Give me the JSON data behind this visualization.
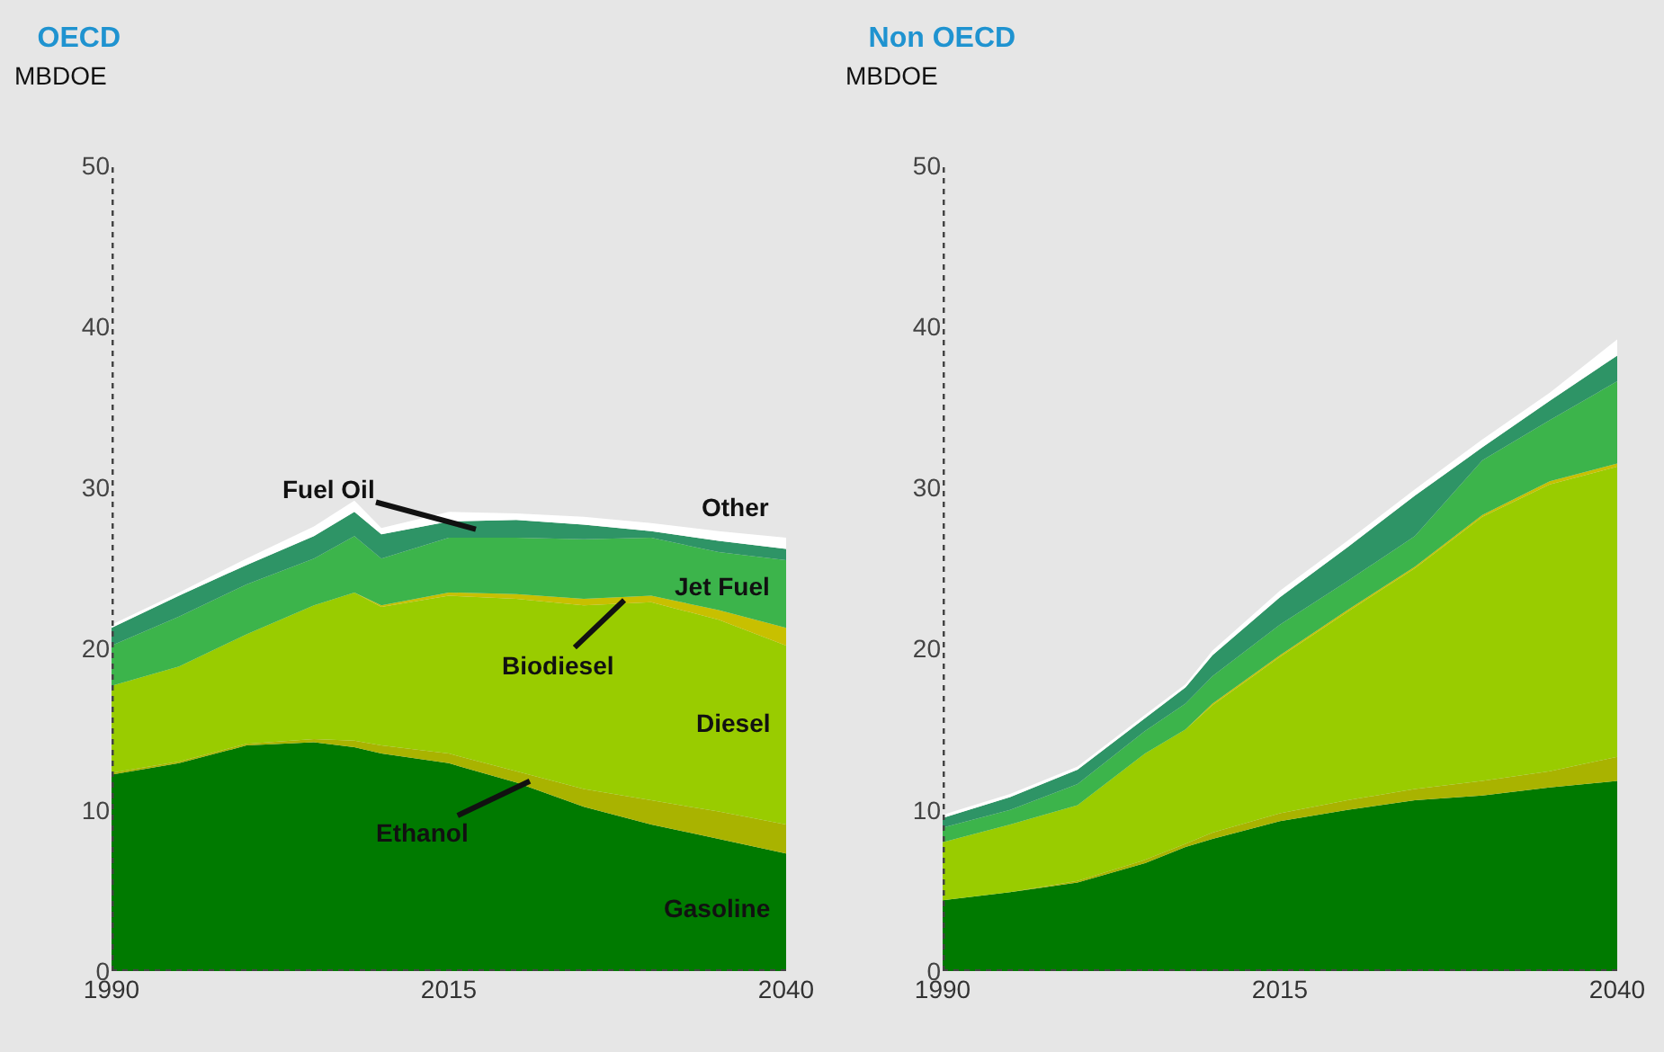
{
  "chart_data": [
    {
      "type": "area",
      "stacked": true,
      "title": "OECD",
      "ylabel": "MBDOE",
      "x": [
        1990,
        1995,
        2000,
        2005,
        2008,
        2010,
        2015,
        2020,
        2025,
        2030,
        2035,
        2040
      ],
      "xlim": [
        1990,
        2040
      ],
      "xticks": [
        1990,
        2015,
        2040
      ],
      "ylim": [
        0,
        50
      ],
      "yticks": [
        0,
        10,
        20,
        30,
        40,
        50
      ],
      "series": [
        {
          "name": "Gasoline",
          "color": "#007a00",
          "values": [
            12.2,
            12.9,
            14.0,
            14.2,
            13.9,
            13.5,
            12.9,
            11.7,
            10.2,
            9.1,
            8.2,
            7.3
          ]
        },
        {
          "name": "Ethanol",
          "color": "#a9b300",
          "values": [
            0.1,
            0.1,
            0.1,
            0.2,
            0.4,
            0.5,
            0.6,
            0.7,
            1.1,
            1.5,
            1.7,
            1.8
          ]
        },
        {
          "name": "Diesel",
          "color": "#99cc00",
          "values": [
            5.4,
            5.9,
            6.8,
            8.3,
            9.2,
            8.6,
            9.8,
            10.7,
            11.4,
            12.3,
            11.9,
            11.1
          ]
        },
        {
          "name": "Biodiesel",
          "color": "#c8c000",
          "values": [
            0,
            0,
            0,
            0,
            0,
            0.1,
            0.2,
            0.3,
            0.4,
            0.4,
            0.6,
            1.1
          ]
        },
        {
          "name": "Jet Fuel",
          "color": "#3cb44b",
          "values": [
            2.5,
            3.1,
            3.1,
            2.9,
            3.5,
            2.9,
            3.4,
            3.5,
            3.7,
            3.6,
            3.6,
            4.2
          ]
        },
        {
          "name": "Fuel Oil",
          "color": "#2e9466",
          "values": [
            1.1,
            1.3,
            1.2,
            1.4,
            1.5,
            1.5,
            1.0,
            1.1,
            0.9,
            0.4,
            0.7,
            0.7
          ]
        },
        {
          "name": "Other",
          "color": "#ffffff",
          "values": [
            0.2,
            0.2,
            0.4,
            0.6,
            0.7,
            0.4,
            0.6,
            0.4,
            0.5,
            0.5,
            0.6,
            0.7
          ]
        }
      ]
    },
    {
      "type": "area",
      "stacked": true,
      "title": "Non OECD",
      "ylabel": "MBDOE",
      "x": [
        1990,
        1995,
        2000,
        2005,
        2008,
        2010,
        2015,
        2020,
        2025,
        2030,
        2035,
        2040
      ],
      "xlim": [
        1990,
        2040
      ],
      "xticks": [
        1990,
        2015,
        2040
      ],
      "ylim": [
        0,
        50
      ],
      "yticks": [
        0,
        10,
        20,
        30,
        40,
        50
      ],
      "series": [
        {
          "color": "#007a00",
          "values": [
            4.4,
            4.9,
            5.5,
            6.7,
            7.7,
            8.2,
            9.3,
            10.0,
            10.6,
            10.9,
            11.4,
            11.8
          ]
        },
        {
          "color": "#a9b300",
          "values": [
            0,
            0,
            0.1,
            0.2,
            0.2,
            0.4,
            0.5,
            0.6,
            0.7,
            0.9,
            1.0,
            1.5
          ]
        },
        {
          "color": "#99cc00",
          "values": [
            3.6,
            4.2,
            4.7,
            6.6,
            7.1,
            7.9,
            9.7,
            11.7,
            13.7,
            16.4,
            17.8,
            18.0
          ]
        },
        {
          "color": "#c8c000",
          "values": [
            0,
            0,
            0,
            0,
            0,
            0.1,
            0.1,
            0.1,
            0.1,
            0.1,
            0.2,
            0.2
          ]
        },
        {
          "color": "#3cb44b",
          "values": [
            0.9,
            0.9,
            1.3,
            1.4,
            1.6,
            1.7,
            1.9,
            1.8,
            1.9,
            3.4,
            3.8,
            5.1
          ]
        },
        {
          "color": "#2e9466",
          "values": [
            0.6,
            0.8,
            0.9,
            0.8,
            1.0,
            1.3,
            1.7,
            2.1,
            2.5,
            0.8,
            1.2,
            1.6
          ]
        },
        {
          "color": "#ffffff",
          "values": [
            0.2,
            0.2,
            0.2,
            0.2,
            0.2,
            0.3,
            0.4,
            0.4,
            0.4,
            0.5,
            0.5,
            1.0
          ]
        }
      ]
    }
  ]
}
